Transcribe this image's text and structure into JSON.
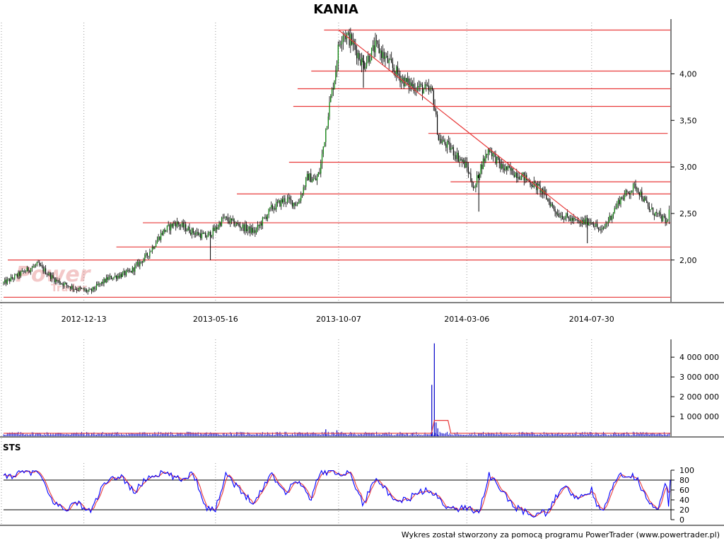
{
  "title": "KANIA",
  "watermark": {
    "line1": "Power",
    "line2": "Trader"
  },
  "footer": "Wykres został stworzony za pomocą programu PowerTrader (www.powertrader.pl)",
  "colors": {
    "candle_up": "#008000",
    "candle_down": "#000000",
    "sr_line": "#e83a3a",
    "trend_line": "#e83a3a",
    "volume_bar": "#0000c8",
    "volume_avg": "#e83a3a",
    "stoch_k": "#0000ff",
    "stoch_d": "#e83a3a",
    "grid": "#9a9a9a",
    "watermark": "#f3c8c8"
  },
  "chart_data": [
    {
      "type": "candlestick",
      "name": "price",
      "title": "KANIA",
      "x_labels": [
        "2012-12-13",
        "2013-05-16",
        "2013-10-07",
        "2014-03-06",
        "2014-07-30"
      ],
      "yticks": [
        {
          "value": 2.0,
          "label": "2,00"
        },
        {
          "value": 2.5,
          "label": "2,50"
        },
        {
          "value": 3.0,
          "label": "3,00"
        },
        {
          "value": 3.5,
          "label": "3,50"
        },
        {
          "value": 4.0,
          "label": "4,00"
        }
      ],
      "ylim": [
        1.55,
        4.55
      ],
      "x_range": [
        "2012-09-10",
        "2014-10-30"
      ],
      "close_path": [
        [
          "2012-09-10",
          1.75
        ],
        [
          "2012-10-05",
          1.88
        ],
        [
          "2012-10-20",
          1.95
        ],
        [
          "2012-11-10",
          1.78
        ],
        [
          "2012-12-01",
          1.7
        ],
        [
          "2012-12-20",
          1.66
        ],
        [
          "2013-01-10",
          1.8
        ],
        [
          "2013-02-05",
          1.87
        ],
        [
          "2013-02-25",
          2.05
        ],
        [
          "2013-03-15",
          2.3
        ],
        [
          "2013-03-30",
          2.4
        ],
        [
          "2013-04-20",
          2.3
        ],
        [
          "2013-05-05",
          2.25
        ],
        [
          "2013-05-16",
          2.33
        ],
        [
          "2013-05-25",
          2.45
        ],
        [
          "2013-06-10",
          2.38
        ],
        [
          "2013-07-01",
          2.3
        ],
        [
          "2013-07-20",
          2.55
        ],
        [
          "2013-08-05",
          2.65
        ],
        [
          "2013-08-20",
          2.6
        ],
        [
          "2013-09-01",
          2.9
        ],
        [
          "2013-09-10",
          2.85
        ],
        [
          "2013-09-15",
          2.95
        ],
        [
          "2013-09-25",
          3.6
        ],
        [
          "2013-10-03",
          4.0
        ],
        [
          "2013-10-07",
          4.3
        ],
        [
          "2013-10-12",
          4.45
        ],
        [
          "2013-10-22",
          4.35
        ],
        [
          "2013-11-05",
          4.1
        ],
        [
          "2013-11-20",
          4.3
        ],
        [
          "2013-12-10",
          4.05
        ],
        [
          "2013-12-25",
          3.9
        ],
        [
          "2014-01-10",
          3.85
        ],
        [
          "2014-01-25",
          3.8
        ],
        [
          "2014-02-01",
          3.3
        ],
        [
          "2014-02-15",
          3.2
        ],
        [
          "2014-03-06",
          3.0
        ],
        [
          "2014-03-15",
          2.75
        ],
        [
          "2014-03-20",
          2.95
        ],
        [
          "2014-04-01",
          3.2
        ],
        [
          "2014-04-15",
          3.0
        ],
        [
          "2014-05-10",
          2.9
        ],
        [
          "2014-06-01",
          2.75
        ],
        [
          "2014-06-20",
          2.5
        ],
        [
          "2014-07-15",
          2.4
        ],
        [
          "2014-07-30",
          2.42
        ],
        [
          "2014-08-10",
          2.3
        ],
        [
          "2014-08-20",
          2.45
        ],
        [
          "2014-09-01",
          2.65
        ],
        [
          "2014-09-20",
          2.8
        ],
        [
          "2014-10-05",
          2.55
        ],
        [
          "2014-10-20",
          2.45
        ],
        [
          "2014-10-27",
          2.4
        ],
        [
          "2014-10-30",
          2.72
        ]
      ],
      "horizontal_lines": [
        {
          "price": 4.47,
          "from": "2013-09-20",
          "to": "2014-10-30"
        },
        {
          "price": 4.03,
          "from": "2013-09-05",
          "to": "2014-10-30"
        },
        {
          "price": 3.84,
          "from": "2013-08-20",
          "to": "2014-10-30"
        },
        {
          "price": 3.65,
          "from": "2013-08-15",
          "to": "2014-10-30"
        },
        {
          "price": 3.36,
          "from": "2014-01-20",
          "to": "2014-10-27"
        },
        {
          "price": 3.05,
          "from": "2013-08-10",
          "to": "2014-10-30"
        },
        {
          "price": 2.84,
          "from": "2014-02-15",
          "to": "2014-10-30"
        },
        {
          "price": 2.71,
          "from": "2013-06-10",
          "to": "2014-10-30"
        },
        {
          "price": 2.4,
          "from": "2013-02-20",
          "to": "2014-10-30"
        },
        {
          "price": 2.14,
          "from": "2013-01-20",
          "to": "2014-10-30"
        },
        {
          "price": 2.0,
          "from": "2012-09-15",
          "to": "2014-10-30"
        },
        {
          "price": 1.6,
          "from": "2012-09-10",
          "to": "2014-10-30"
        }
      ],
      "trend_line": {
        "from": [
          "2013-10-07",
          4.47
        ],
        "to": [
          "2014-07-20",
          2.4
        ]
      }
    },
    {
      "type": "bar",
      "name": "volume",
      "yticks": [
        {
          "value": 1000000,
          "label": "1 000 000"
        },
        {
          "value": 2000000,
          "label": "2 000 000"
        },
        {
          "value": 3000000,
          "label": "3 000 000"
        },
        {
          "value": 4000000,
          "label": "4 000 000"
        }
      ],
      "ylim": [
        0,
        4900000
      ],
      "typical_volume": 150000,
      "spikes": [
        {
          "date": "2014-01-24",
          "value": 2600000
        },
        {
          "date": "2014-01-27",
          "value": 4700000
        },
        {
          "date": "2014-01-29",
          "value": 700000
        },
        {
          "date": "2014-01-31",
          "value": 400000
        },
        {
          "date": "2013-09-22",
          "value": 350000
        },
        {
          "date": "2013-10-05",
          "value": 300000
        }
      ],
      "average_bump": {
        "from": "2014-01-27",
        "to": "2014-02-12",
        "value": 800000
      }
    },
    {
      "type": "line",
      "name": "STS",
      "title": "STS",
      "yticks": [
        {
          "value": 0,
          "label": "0"
        },
        {
          "value": 20,
          "label": "20"
        },
        {
          "value": 40,
          "label": "40"
        },
        {
          "value": 60,
          "label": "60"
        },
        {
          "value": 80,
          "label": "80"
        },
        {
          "value": 100,
          "label": "100"
        }
      ],
      "ylim": [
        0,
        100
      ],
      "levels": [
        20,
        80
      ],
      "k_path": [
        [
          "2012-09-10",
          85
        ],
        [
          "2012-10-01",
          95
        ],
        [
          "2012-10-20",
          98
        ],
        [
          "2012-11-05",
          40
        ],
        [
          "2012-11-20",
          20
        ],
        [
          "2012-12-05",
          35
        ],
        [
          "2012-12-20",
          15
        ],
        [
          "2013-01-05",
          70
        ],
        [
          "2013-01-25",
          90
        ],
        [
          "2013-02-10",
          55
        ],
        [
          "2013-02-25",
          85
        ],
        [
          "2013-03-15",
          95
        ],
        [
          "2013-04-05",
          80
        ],
        [
          "2013-04-20",
          95
        ],
        [
          "2013-05-05",
          25
        ],
        [
          "2013-05-16",
          20
        ],
        [
          "2013-05-28",
          95
        ],
        [
          "2013-06-15",
          55
        ],
        [
          "2013-07-01",
          35
        ],
        [
          "2013-07-20",
          95
        ],
        [
          "2013-08-05",
          55
        ],
        [
          "2013-08-20",
          80
        ],
        [
          "2013-09-05",
          40
        ],
        [
          "2013-09-15",
          98
        ],
        [
          "2013-10-07",
          95
        ],
        [
          "2013-10-20",
          95
        ],
        [
          "2013-11-05",
          30
        ],
        [
          "2013-11-20",
          90
        ],
        [
          "2013-12-10",
          35
        ],
        [
          "2013-12-25",
          40
        ],
        [
          "2014-01-15",
          60
        ],
        [
          "2014-02-01",
          45
        ],
        [
          "2014-02-15",
          20
        ],
        [
          "2014-03-06",
          25
        ],
        [
          "2014-03-20",
          15
        ],
        [
          "2014-04-01",
          90
        ],
        [
          "2014-04-15",
          60
        ],
        [
          "2014-05-01",
          25
        ],
        [
          "2014-05-20",
          10
        ],
        [
          "2014-06-10",
          15
        ],
        [
          "2014-06-25",
          70
        ],
        [
          "2014-07-15",
          40
        ],
        [
          "2014-07-30",
          60
        ],
        [
          "2014-08-10",
          10
        ],
        [
          "2014-08-20",
          50
        ],
        [
          "2014-09-01",
          95
        ],
        [
          "2014-09-20",
          85
        ],
        [
          "2014-10-01",
          50
        ],
        [
          "2014-10-15",
          15
        ],
        [
          "2014-10-25",
          75
        ],
        [
          "2014-10-28",
          30
        ],
        [
          "2014-10-30",
          85
        ]
      ]
    }
  ]
}
